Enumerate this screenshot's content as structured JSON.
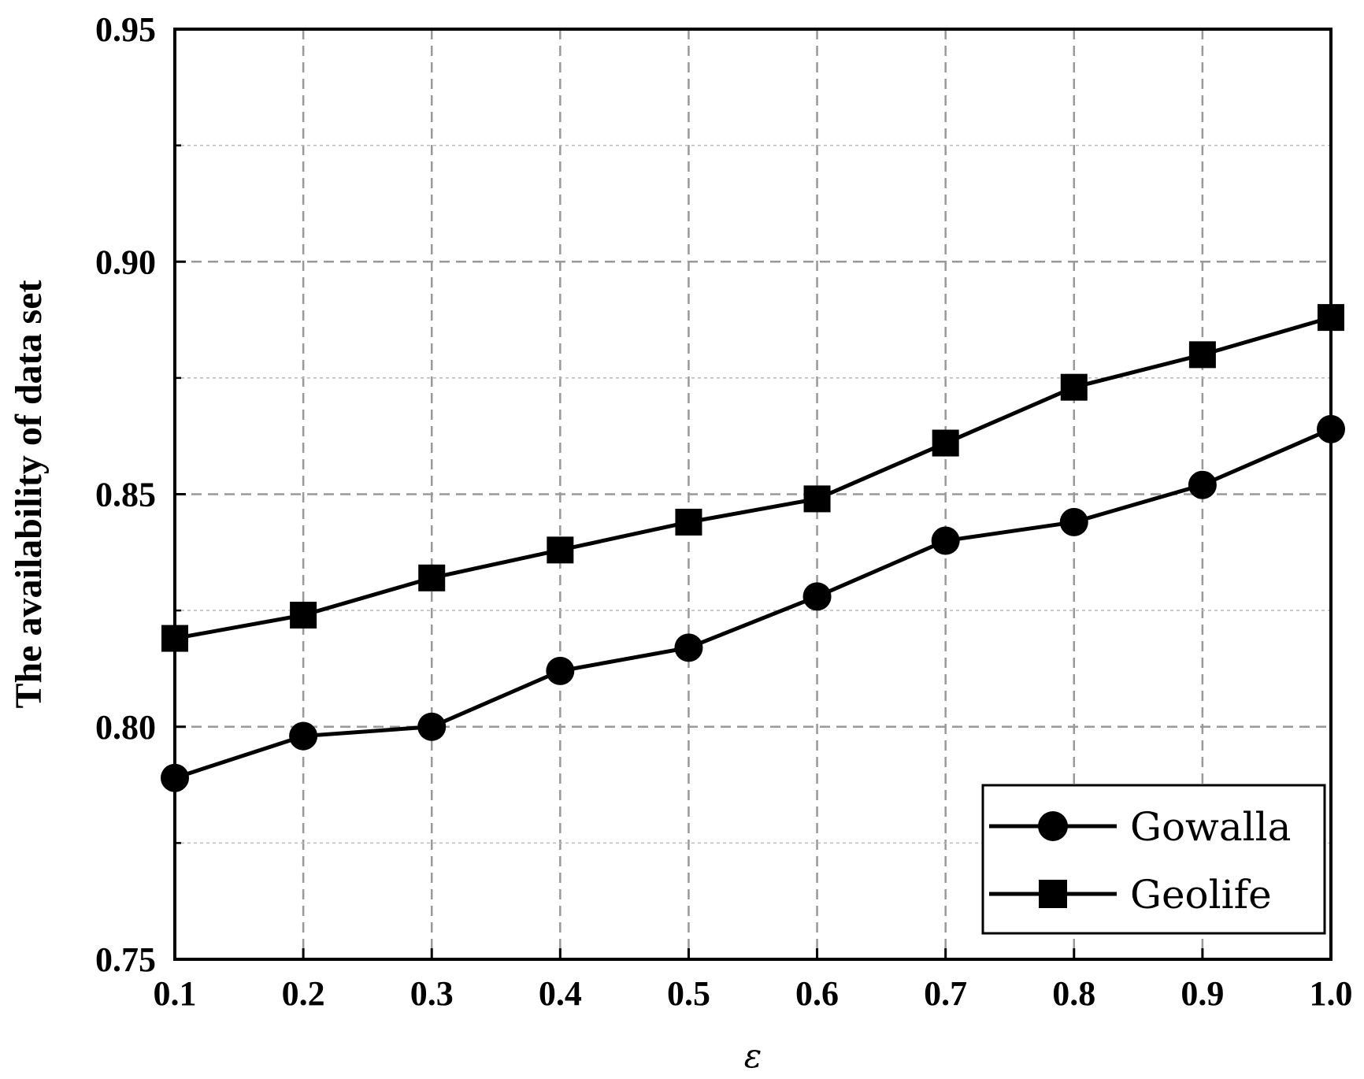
{
  "chart_data": {
    "type": "line",
    "title": "",
    "xlabel": "ε",
    "ylabel": "The availability of data set",
    "x": [
      0.1,
      0.2,
      0.3,
      0.4,
      0.5,
      0.6,
      0.7,
      0.8,
      0.9,
      1.0
    ],
    "x_tick_labels": [
      "0.1",
      "0.2",
      "0.3",
      "0.4",
      "0.5",
      "0.6",
      "0.7",
      "0.8",
      "0.9",
      "1.0"
    ],
    "y_ticks": [
      0.75,
      0.8,
      0.85,
      0.9,
      0.95
    ],
    "y_tick_labels": [
      "0.75",
      "0.80",
      "0.85",
      "0.90",
      "0.95"
    ],
    "xlim": [
      0.1,
      1.0
    ],
    "ylim": [
      0.75,
      0.95
    ],
    "grid": true,
    "legend_position": "bottom-right",
    "series": [
      {
        "name": "Gowalla",
        "marker": "circle",
        "color": "#000000",
        "values": [
          0.789,
          0.798,
          0.8,
          0.812,
          0.817,
          0.828,
          0.84,
          0.844,
          0.852,
          0.864
        ]
      },
      {
        "name": "Geolife",
        "marker": "square",
        "color": "#000000",
        "values": [
          0.819,
          0.824,
          0.832,
          0.838,
          0.844,
          0.849,
          0.861,
          0.873,
          0.88,
          0.888
        ]
      }
    ]
  }
}
